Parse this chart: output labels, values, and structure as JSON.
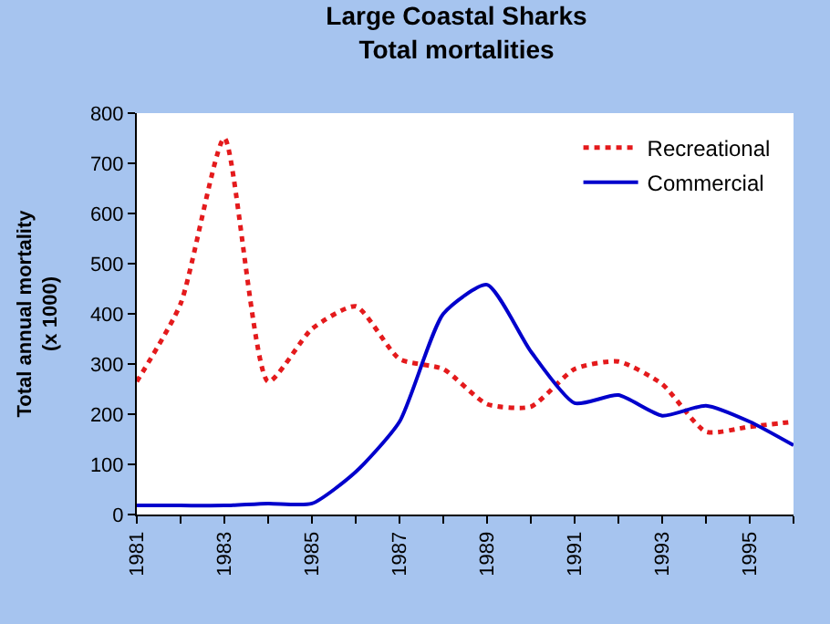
{
  "chart_data": {
    "type": "line",
    "title": "Large Coastal Sharks\nTotal mortalities",
    "ylabel": "Total annual mortality\n(x 1000)",
    "x": [
      1981,
      1982,
      1983,
      1984,
      1985,
      1986,
      1987,
      1988,
      1989,
      1990,
      1991,
      1992,
      1993,
      1994,
      1995,
      1996
    ],
    "series": [
      {
        "name": "Recreational",
        "color": "#e41a1c",
        "line_style": "dotted",
        "values": [
          265,
          420,
          750,
          265,
          370,
          415,
          310,
          290,
          220,
          215,
          290,
          305,
          260,
          165,
          175,
          185
        ]
      },
      {
        "name": "Commercial",
        "color": "#0000cc",
        "line_style": "solid",
        "values": [
          18,
          18,
          18,
          22,
          22,
          85,
          185,
          400,
          458,
          325,
          222,
          238,
          197,
          217,
          185,
          138
        ]
      }
    ],
    "xlim": [
      1981,
      1996
    ],
    "xticks": [
      1981,
      {
        "value": 1982,
        "label": null
      },
      1983,
      {
        "value": 1984,
        "label": null
      },
      1985,
      {
        "value": 1986,
        "label": null
      },
      1987,
      {
        "value": 1988,
        "label": null
      },
      1989,
      {
        "value": 1990,
        "label": null
      },
      1991,
      {
        "value": 1992,
        "label": null
      },
      1993,
      {
        "value": 1994,
        "label": null
      },
      1995,
      {
        "value": 1996,
        "label": null
      }
    ],
    "ylim": [
      0,
      800
    ],
    "yticks": [
      0,
      100,
      200,
      300,
      400,
      500,
      600,
      700,
      800
    ],
    "grid": false,
    "legend": "top right"
  }
}
